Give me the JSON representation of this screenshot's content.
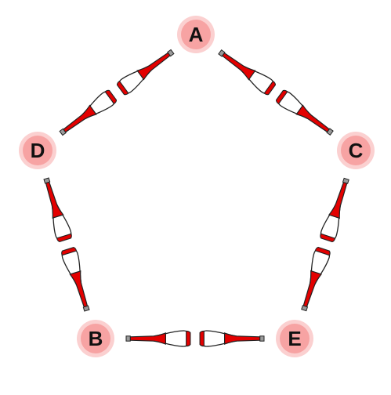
{
  "nodes": [
    {
      "id": "A",
      "label": "A"
    },
    {
      "id": "C",
      "label": "C"
    },
    {
      "id": "E",
      "label": "E"
    },
    {
      "id": "B",
      "label": "B"
    },
    {
      "id": "D",
      "label": "D"
    }
  ],
  "edges": [
    {
      "from": "A",
      "to": "C"
    },
    {
      "from": "C",
      "to": "E"
    },
    {
      "from": "E",
      "to": "B"
    },
    {
      "from": "B",
      "to": "D"
    },
    {
      "from": "D",
      "to": "A"
    }
  ],
  "colors": {
    "node_fill": "#f7a3a3",
    "node_ring": "#fbd0d0",
    "node_text": "#111111",
    "club_red": "#e30000",
    "club_white": "#ffffff",
    "club_knob": "#9a9a9a",
    "outline": "#222222"
  },
  "icons": {
    "edge_marker": "juggling-club-icon"
  }
}
